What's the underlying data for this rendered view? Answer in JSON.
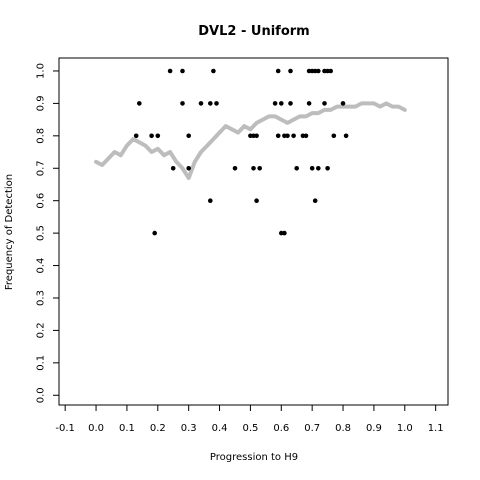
{
  "chart_data": {
    "type": "scatter",
    "title": "DVL2 - Uniform",
    "xlabel": "Progression to H9",
    "ylabel": "Frequency of Detection",
    "xlim": [
      -0.12,
      1.14
    ],
    "ylim": [
      -0.03,
      1.04
    ],
    "x_ticks": [
      "-0.1",
      "0.0",
      "0.1",
      "0.2",
      "0.3",
      "0.4",
      "0.5",
      "0.6",
      "0.7",
      "0.8",
      "0.9",
      "1.0",
      "1.1"
    ],
    "y_ticks": [
      "0.0",
      "0.1",
      "0.2",
      "0.3",
      "0.4",
      "0.5",
      "0.6",
      "0.7",
      "0.8",
      "0.9",
      "1.0"
    ],
    "grid": false,
    "colors": {
      "points": "#000000",
      "smooth": "#bdbdbd"
    },
    "series": [
      {
        "kind": "points",
        "x": [
          0.13,
          0.14,
          0.18,
          0.19,
          0.2,
          0.24,
          0.25,
          0.28,
          0.28,
          0.3,
          0.3,
          0.34,
          0.37,
          0.37,
          0.38,
          0.39,
          0.45,
          0.5,
          0.51,
          0.51,
          0.52,
          0.52,
          0.53,
          0.58,
          0.59,
          0.59,
          0.6,
          0.6,
          0.61,
          0.61,
          0.62,
          0.63,
          0.63,
          0.64,
          0.65,
          0.67,
          0.68,
          0.69,
          0.69,
          0.7,
          0.7,
          0.71,
          0.71,
          0.72,
          0.72,
          0.74,
          0.74,
          0.75,
          0.75,
          0.76,
          0.77,
          0.8,
          0.81
        ],
        "y": [
          0.8,
          0.9,
          0.8,
          0.5,
          0.8,
          1.0,
          0.7,
          1.0,
          0.9,
          0.8,
          0.7,
          0.9,
          0.6,
          0.9,
          1.0,
          0.9,
          0.7,
          0.8,
          0.8,
          0.7,
          0.8,
          0.6,
          0.7,
          0.9,
          1.0,
          0.8,
          0.5,
          0.9,
          0.5,
          0.8,
          0.8,
          1.0,
          0.9,
          0.8,
          0.7,
          0.8,
          0.8,
          0.9,
          1.0,
          1.0,
          0.7,
          0.6,
          1.0,
          0.7,
          1.0,
          0.9,
          1.0,
          0.7,
          1.0,
          1.0,
          0.8,
          0.9,
          0.8
        ]
      },
      {
        "kind": "smooth",
        "x": [
          0.0,
          0.02,
          0.04,
          0.06,
          0.08,
          0.1,
          0.12,
          0.14,
          0.16,
          0.18,
          0.2,
          0.22,
          0.24,
          0.26,
          0.28,
          0.3,
          0.32,
          0.34,
          0.36,
          0.38,
          0.4,
          0.42,
          0.44,
          0.46,
          0.48,
          0.5,
          0.52,
          0.54,
          0.56,
          0.58,
          0.6,
          0.62,
          0.64,
          0.66,
          0.68,
          0.7,
          0.72,
          0.74,
          0.76,
          0.78,
          0.8,
          0.82,
          0.84,
          0.86,
          0.88,
          0.9,
          0.92,
          0.94,
          0.96,
          0.98,
          1.0
        ],
        "y": [
          0.72,
          0.71,
          0.73,
          0.75,
          0.74,
          0.77,
          0.79,
          0.78,
          0.77,
          0.75,
          0.76,
          0.74,
          0.75,
          0.72,
          0.7,
          0.67,
          0.72,
          0.75,
          0.77,
          0.79,
          0.81,
          0.83,
          0.82,
          0.81,
          0.83,
          0.82,
          0.84,
          0.85,
          0.86,
          0.86,
          0.85,
          0.84,
          0.85,
          0.86,
          0.86,
          0.87,
          0.87,
          0.88,
          0.88,
          0.89,
          0.89,
          0.89,
          0.89,
          0.9,
          0.9,
          0.9,
          0.89,
          0.9,
          0.89,
          0.89,
          0.88
        ]
      }
    ]
  }
}
